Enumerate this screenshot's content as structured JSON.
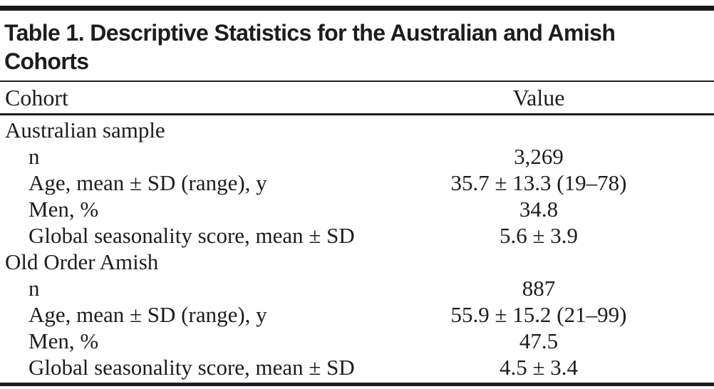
{
  "page": {
    "title_line1": "Table 1. Descriptive Statistics for the Australian and Amish",
    "title_line2": "Cohorts"
  },
  "table": {
    "columns": [
      "Cohort",
      "Value"
    ],
    "sections": [
      {
        "header": "Australian sample",
        "rows": [
          {
            "label": "n",
            "value": "3,269"
          },
          {
            "label": "Age, mean ± SD (range), y",
            "value": "35.7 ± 13.3 (19–78)"
          },
          {
            "label": "Men, %",
            "value": "34.8"
          },
          {
            "label": "Global seasonality score, mean ± SD",
            "value": "5.6 ± 3.9"
          }
        ]
      },
      {
        "header": "Old Order Amish",
        "rows": [
          {
            "label": "n",
            "value": "887"
          },
          {
            "label": "Age, mean ± SD (range), y",
            "value": "55.9 ± 15.2 (21–99)"
          },
          {
            "label": "Men, %",
            "value": "47.5"
          },
          {
            "label": "Global seasonality score, mean ± SD",
            "value": "4.5 ± 3.4"
          }
        ]
      }
    ]
  }
}
